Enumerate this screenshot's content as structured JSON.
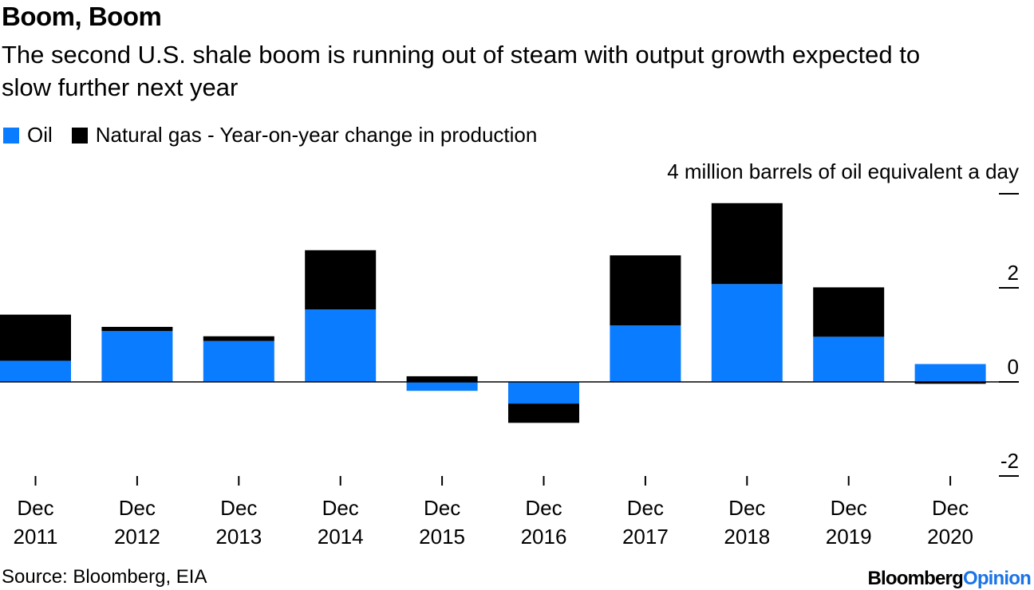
{
  "title": "Boom, Boom",
  "subtitle": "The second U.S. shale boom is running out of steam with output growth expected to slow further next year",
  "legend": {
    "oil": "Oil",
    "gas": "Natural gas - Year-on-year change in production"
  },
  "source": "Source: Bloomberg, EIA",
  "logo": {
    "brand": "Bloomberg",
    "product": "Opinion"
  },
  "colors": {
    "oil": "#0a7cff",
    "gas": "#000000",
    "axis": "#000000",
    "logo_accent": "#1a73e8"
  },
  "chart_data": {
    "type": "bar",
    "stacked": true,
    "categories": [
      [
        "Dec",
        "2011"
      ],
      [
        "Dec",
        "2012"
      ],
      [
        "Dec",
        "2013"
      ],
      [
        "Dec",
        "2014"
      ],
      [
        "Dec",
        "2015"
      ],
      [
        "Dec",
        "2016"
      ],
      [
        "Dec",
        "2017"
      ],
      [
        "Dec",
        "2018"
      ],
      [
        "Dec",
        "2019"
      ],
      [
        "Dec",
        "2020"
      ]
    ],
    "series": [
      {
        "name": "Oil",
        "values": [
          0.45,
          1.08,
          0.87,
          1.54,
          -0.19,
          -0.46,
          1.2,
          2.08,
          0.96,
          0.38
        ]
      },
      {
        "name": "Natural gas",
        "values": [
          0.98,
          0.09,
          0.1,
          1.26,
          0.12,
          -0.41,
          1.49,
          1.72,
          1.05,
          -0.04
        ]
      }
    ],
    "y_unit_label": "4 million barrels of oil equivalent a day",
    "yticks": [
      {
        "value": 4,
        "label": ""
      },
      {
        "value": 2,
        "label": "2"
      },
      {
        "value": 0,
        "label": "0"
      },
      {
        "value": -2,
        "label": "-2"
      }
    ],
    "ylim": [
      -2,
      4
    ]
  }
}
